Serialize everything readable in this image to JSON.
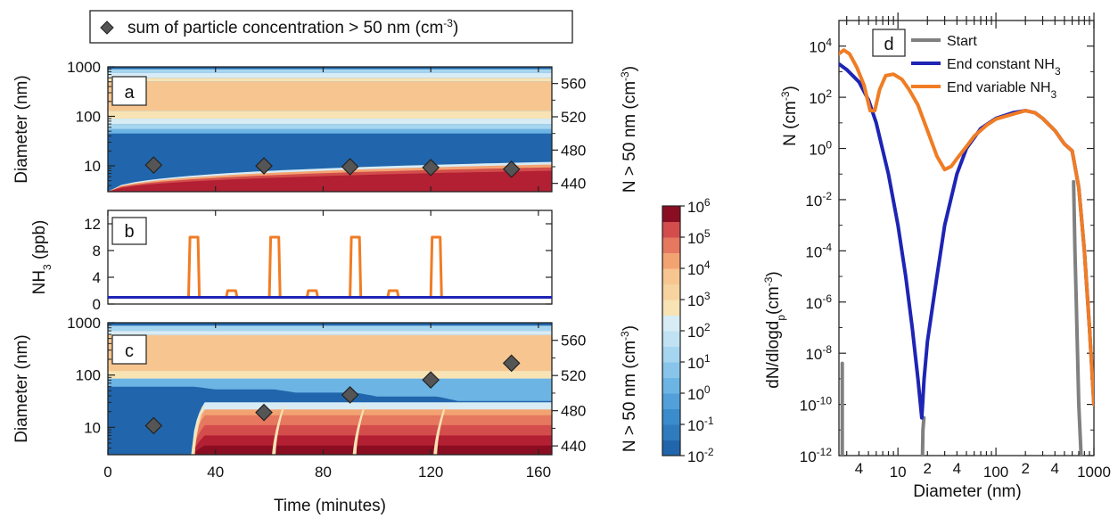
{
  "colors": {
    "scale": [
      "#2166ac",
      "#3a8ccc",
      "#6cb4e4",
      "#a6d5ef",
      "#d8ecf5",
      "#f7e3b4",
      "#f7c690",
      "#f3a372",
      "#e6785f",
      "#d24d4b",
      "#b31f33",
      "#8b0d22"
    ],
    "start": "#808080",
    "end_constant": "#1e24b4",
    "end_variable": "#f07c24",
    "marker": "#555555"
  },
  "top_legend": {
    "label": "sum of particle concentration > 50 nm (cm",
    "sup": "-3",
    "close": ")"
  },
  "panels": {
    "a": "a",
    "b": "b",
    "c": "c",
    "d": "d"
  },
  "chart_data": [
    {
      "panel": "a",
      "type": "heatmap",
      "xlabel": "",
      "ylabel": "Diameter (nm)",
      "xlim": [
        0,
        165
      ],
      "ylim": [
        3,
        1000
      ],
      "yscale": "log",
      "yticks": [
        "1000",
        "100",
        "10"
      ],
      "y2label": "N > 50 nm (cm",
      "y2label_sup": "-3",
      "y2label_close": ")",
      "y2lim": [
        430,
        580
      ],
      "y2ticks": [
        "560",
        "520",
        "480",
        "440"
      ],
      "markers": {
        "x": [
          17,
          58,
          90,
          120,
          150
        ],
        "y2": [
          462,
          461,
          460,
          459,
          457
        ]
      }
    },
    {
      "panel": "b",
      "type": "line",
      "ylabel": "NH",
      "ylabel_sub": "3",
      "ylabel_unit": " (ppb)",
      "xlim": [
        0,
        165
      ],
      "ylim": [
        0,
        14
      ],
      "yticks": [
        "12",
        "8",
        "4",
        "0"
      ],
      "series": [
        {
          "name": "variable NH3",
          "color": "#f07c24",
          "x": [
            0,
            30,
            30.5,
            33.5,
            34,
            44,
            44.5,
            47.5,
            48,
            60,
            60.5,
            63.5,
            64,
            74,
            74.5,
            77.5,
            78,
            90,
            90.5,
            93.5,
            94,
            104,
            104.5,
            107.5,
            108,
            120,
            120.5,
            123.5,
            124,
            165
          ],
          "y": [
            1,
            1,
            10,
            10,
            1,
            1,
            2,
            2,
            1,
            1,
            10,
            10,
            1,
            1,
            2,
            2,
            1,
            1,
            10,
            10,
            1,
            1,
            2,
            2,
            1,
            1,
            10,
            10,
            1,
            1
          ]
        },
        {
          "name": "constant NH3",
          "color": "#1e24b4",
          "x": [
            0,
            165
          ],
          "y": [
            1,
            1
          ]
        }
      ]
    },
    {
      "panel": "c",
      "type": "heatmap",
      "xlabel": "Time (minutes)",
      "ylabel": "Diameter (nm)",
      "xlim": [
        0,
        165
      ],
      "xticks": [
        0,
        40,
        80,
        120,
        160
      ],
      "ylim": [
        3,
        1000
      ],
      "yscale": "log",
      "yticks": [
        "1000",
        "100",
        "10"
      ],
      "y2label": "N > 50 nm (cm",
      "y2label_sup": "-3",
      "y2label_close": ")",
      "y2lim": [
        430,
        580
      ],
      "y2ticks": [
        "560",
        "520",
        "480",
        "440"
      ],
      "markers": {
        "x": [
          17,
          58,
          90,
          120,
          150
        ],
        "y2": [
          463,
          478,
          498,
          515,
          534
        ]
      }
    },
    {
      "type": "colorbar",
      "label": "dN/dlogd",
      "label_sub": "p",
      "label_unit": "(cm",
      "label_sup": "-3",
      "label_close": ")",
      "scale": "log",
      "range": [
        0.01,
        1000000
      ],
      "ticks": [
        {
          "base": "10",
          "exp": "6"
        },
        {
          "base": "10",
          "exp": "5"
        },
        {
          "base": "10",
          "exp": "4"
        },
        {
          "base": "10",
          "exp": "3"
        },
        {
          "base": "10",
          "exp": "2"
        },
        {
          "base": "10",
          "exp": "1"
        },
        {
          "base": "10",
          "exp": "0"
        },
        {
          "base": "10",
          "exp": "-1"
        },
        {
          "base": "10",
          "exp": "-2"
        }
      ]
    },
    {
      "panel": "d",
      "type": "line",
      "xlabel": "Diameter (nm)",
      "ylabel": "N (cm",
      "ylabel_sup": "-3",
      "ylabel_close": ")",
      "xscale": "log",
      "yscale": "log",
      "xlim": [
        2.5,
        1000
      ],
      "ylim": [
        1e-12,
        100000.0
      ],
      "xticks": [
        "4",
        "10",
        "2",
        "4",
        "100",
        "2",
        "4",
        "1000"
      ],
      "yticks": [
        {
          "base": "10",
          "exp": "4"
        },
        {
          "base": "10",
          "exp": "2"
        },
        {
          "base": "10",
          "exp": "0"
        },
        {
          "base": "10",
          "exp": "-2"
        },
        {
          "base": "10",
          "exp": "-4"
        },
        {
          "base": "10",
          "exp": "-6"
        },
        {
          "base": "10",
          "exp": "-8"
        },
        {
          "base": "10",
          "exp": "-10"
        },
        {
          "base": "10",
          "exp": "-12"
        }
      ],
      "legend": {
        "placement": "top",
        "entries": [
          "Start",
          "End constant NH",
          "End variable NH"
        ],
        "sub": "3"
      },
      "series": [
        {
          "name": "Start",
          "color": "#808080",
          "segments": [
            {
              "x": [
                2.7,
                2.7
              ],
              "y": [
                1e-12,
                4e-09
              ]
            },
            {
              "x": [
                17.8,
                18,
                18.4
              ],
              "y": [
                1e-12,
                1e-11,
                3e-11
              ]
            },
            {
              "x": [
                620,
                640,
                660,
                680,
                700,
                720,
                740
              ],
              "y": [
                0.05,
                0.0001,
                1e-06,
                1e-08,
                1e-10,
                1e-11,
                1e-12
              ]
            }
          ]
        },
        {
          "name": "End constant NH3",
          "color": "#1e24b4",
          "x": [
            2.5,
            3,
            4,
            5,
            6,
            8,
            10,
            12,
            14,
            16,
            17.5,
            18.5,
            20,
            25,
            30,
            40,
            50,
            70,
            100,
            150,
            200,
            250,
            300,
            400,
            500,
            600,
            700,
            800,
            900,
            1000
          ],
          "y": [
            2000,
            1200,
            400,
            80,
            10,
            0.1,
            0.001,
            1e-05,
            1e-07,
            1e-09,
            3e-11,
            1e-09,
            3e-08,
            1e-05,
            0.001,
            0.1,
            1,
            6,
            15,
            25,
            30,
            25,
            15,
            5,
            1.5,
            0.8,
            0.03,
            0.0001,
            1e-07,
            1e-10
          ]
        },
        {
          "name": "End variable NH3",
          "color": "#f07c24",
          "x": [
            2.5,
            2.8,
            3.2,
            3.8,
            4.5,
            5.2,
            5.8,
            6.5,
            7.5,
            9,
            11,
            13,
            16,
            20,
            25,
            30,
            35,
            40,
            50,
            60,
            80,
            100,
            150,
            200,
            250,
            300,
            400,
            500,
            600,
            700,
            800,
            900,
            1000
          ],
          "y": [
            5000,
            7000,
            5000,
            1500,
            300,
            30,
            30,
            200,
            700,
            800,
            500,
            200,
            50,
            5,
            0.5,
            0.15,
            0.2,
            0.4,
            1.2,
            3,
            8,
            14,
            22,
            30,
            25,
            15,
            5,
            1.5,
            0.8,
            0.03,
            0.0001,
            1e-07,
            1e-10
          ]
        }
      ]
    }
  ]
}
